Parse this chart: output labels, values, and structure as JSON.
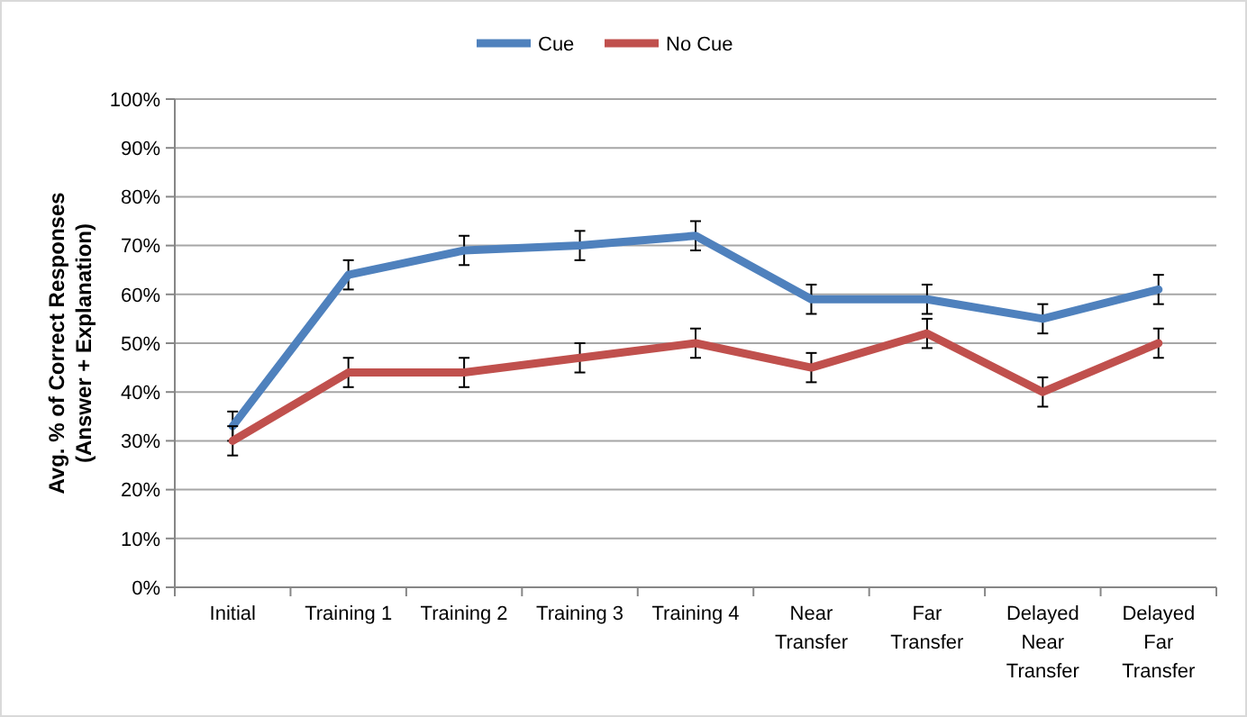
{
  "chart_data": {
    "type": "line",
    "ylabel": "Avg. % of Correct Responses\n(Answer + Explanation)",
    "categories": [
      "Initial",
      "Training 1",
      "Training 2",
      "Training 3",
      "Training 4",
      "Near Transfer",
      "Far Transfer",
      "Delayed Near Transfer",
      "Delayed Far Transfer"
    ],
    "series": [
      {
        "name": "Cue",
        "color": "#4f81bd",
        "values": [
          33,
          64,
          69,
          70,
          72,
          59,
          59,
          55,
          61
        ],
        "errors": [
          3,
          3,
          3,
          3,
          3,
          3,
          3,
          3,
          3
        ]
      },
      {
        "name": "No Cue",
        "color": "#c0504d",
        "values": [
          30,
          44,
          44,
          47,
          50,
          45,
          52,
          40,
          50
        ],
        "errors": [
          3,
          3,
          3,
          3,
          3,
          3,
          3,
          3,
          3
        ]
      }
    ],
    "ylim": [
      0,
      100
    ],
    "yticks": [
      {
        "value": 0,
        "label": "0%"
      },
      {
        "value": 10,
        "label": "10%"
      },
      {
        "value": 20,
        "label": "20%"
      },
      {
        "value": 30,
        "label": "30%"
      },
      {
        "value": 40,
        "label": "40%"
      },
      {
        "value": 50,
        "label": "50%"
      },
      {
        "value": 60,
        "label": "60%"
      },
      {
        "value": 70,
        "label": "70%"
      },
      {
        "value": 80,
        "label": "80%"
      },
      {
        "value": 90,
        "label": "90%"
      },
      {
        "value": 100,
        "label": "100%"
      }
    ],
    "grid": "y",
    "legend": "top",
    "marker": "none",
    "line_style": "solid"
  }
}
